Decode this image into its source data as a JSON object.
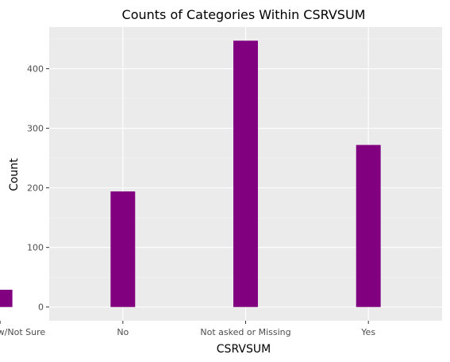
{
  "chart_data": {
    "type": "bar",
    "title": "Counts of Categories Within CSRVSUM",
    "xlabel": "CSRVSUM",
    "ylabel": "Count",
    "categories": [
      "Don’t know/Not Sure",
      "No",
      "Not asked or Missing",
      "Yes"
    ],
    "values": [
      29,
      194,
      447,
      272
    ],
    "ylim": [
      -23,
      470
    ],
    "yticks": [
      0,
      100,
      200,
      300,
      400
    ],
    "grid": true,
    "legend": "none",
    "colors": {
      "bar": "#800080",
      "panel": "#ebebeb",
      "grid_major": "#ffffff",
      "grid_minor": "#f5f5f5"
    }
  }
}
